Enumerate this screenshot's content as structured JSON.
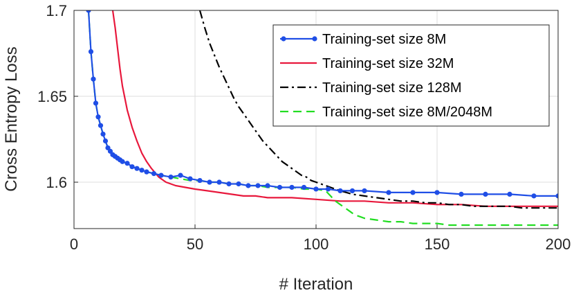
{
  "chart_data": {
    "type": "line",
    "title": "",
    "xlabel": "# Iteration",
    "ylabel": "Cross Entropy Loss",
    "xlim": [
      0,
      200
    ],
    "ylim": [
      1.573,
      1.7
    ],
    "xticks": [
      0,
      50,
      100,
      150,
      200
    ],
    "yticks": [
      1.6,
      1.65,
      1.7
    ],
    "xtick_labels": [
      "0",
      "50",
      "100",
      "150",
      "200"
    ],
    "ytick_labels": [
      "1.6",
      "1.65",
      "1.7"
    ],
    "grid": true,
    "legend_position": "top-right",
    "series": [
      {
        "name": "Training-set size 8M",
        "color": "#1f4ee6",
        "style": "solid-markers",
        "x": [
          6,
          7,
          8,
          9,
          10,
          11,
          12,
          13,
          14,
          15,
          16,
          17,
          18,
          19,
          20,
          22,
          24,
          26,
          28,
          30,
          33,
          36,
          40,
          44,
          48,
          52,
          56,
          60,
          64,
          68,
          72,
          76,
          80,
          85,
          90,
          95,
          100,
          105,
          110,
          115,
          120,
          130,
          140,
          150,
          160,
          170,
          180,
          190,
          200
        ],
        "y": [
          1.7,
          1.676,
          1.66,
          1.646,
          1.638,
          1.633,
          1.628,
          1.624,
          1.62,
          1.618,
          1.616,
          1.615,
          1.614,
          1.613,
          1.612,
          1.611,
          1.609,
          1.608,
          1.607,
          1.606,
          1.605,
          1.604,
          1.603,
          1.604,
          1.602,
          1.601,
          1.6,
          1.6,
          1.599,
          1.599,
          1.598,
          1.598,
          1.598,
          1.597,
          1.597,
          1.597,
          1.596,
          1.596,
          1.595,
          1.595,
          1.595,
          1.594,
          1.594,
          1.594,
          1.593,
          1.593,
          1.593,
          1.592,
          1.592
        ]
      },
      {
        "name": "Training-set size 32M",
        "color": "#e8183c",
        "style": "solid",
        "x": [
          16,
          17,
          18,
          19,
          20,
          22,
          24,
          26,
          28,
          30,
          32,
          35,
          38,
          42,
          46,
          50,
          55,
          60,
          65,
          70,
          75,
          80,
          90,
          100,
          110,
          120,
          130,
          140,
          150,
          160,
          170,
          180,
          190,
          200
        ],
        "y": [
          1.7,
          1.69,
          1.678,
          1.666,
          1.656,
          1.642,
          1.632,
          1.624,
          1.617,
          1.612,
          1.608,
          1.603,
          1.6,
          1.598,
          1.597,
          1.596,
          1.595,
          1.594,
          1.593,
          1.592,
          1.592,
          1.591,
          1.591,
          1.59,
          1.589,
          1.589,
          1.588,
          1.588,
          1.587,
          1.587,
          1.586,
          1.586,
          1.586,
          1.586
        ]
      },
      {
        "name": "Training-set size 128M",
        "color": "#000000",
        "style": "dash-dot",
        "x": [
          52,
          54,
          56,
          58,
          60,
          62,
          64,
          66,
          68,
          70,
          72,
          74,
          76,
          78,
          80,
          82,
          84,
          86,
          88,
          90,
          92,
          94,
          96,
          98,
          100,
          102,
          104,
          106,
          108,
          110,
          115,
          120,
          125,
          130,
          135,
          140,
          145,
          150,
          155,
          160,
          165,
          170,
          175,
          180,
          185,
          190,
          195,
          200
        ],
        "y": [
          1.7,
          1.69,
          1.681,
          1.674,
          1.667,
          1.661,
          1.655,
          1.649,
          1.644,
          1.64,
          1.636,
          1.632,
          1.628,
          1.624,
          1.621,
          1.618,
          1.615,
          1.612,
          1.61,
          1.608,
          1.606,
          1.604,
          1.603,
          1.601,
          1.6,
          1.599,
          1.598,
          1.597,
          1.596,
          1.595,
          1.593,
          1.592,
          1.591,
          1.59,
          1.589,
          1.589,
          1.588,
          1.588,
          1.587,
          1.587,
          1.586,
          1.586,
          1.586,
          1.586,
          1.585,
          1.585,
          1.585,
          1.585
        ]
      },
      {
        "name": "Training-set size 8M/2048M",
        "color": "#22dd22",
        "style": "dashed",
        "x": [
          6,
          7,
          8,
          9,
          10,
          11,
          12,
          13,
          14,
          15,
          16,
          17,
          18,
          19,
          20,
          22,
          24,
          26,
          28,
          30,
          33,
          36,
          40,
          44,
          48,
          52,
          56,
          60,
          64,
          68,
          72,
          76,
          80,
          85,
          90,
          95,
          100,
          104,
          106,
          108,
          110,
          112,
          114,
          116,
          118,
          120,
          125,
          130,
          135,
          140,
          145,
          150,
          155,
          160,
          165,
          170,
          175,
          180,
          185,
          190,
          195,
          200
        ],
        "y": [
          1.7,
          1.676,
          1.66,
          1.646,
          1.638,
          1.633,
          1.628,
          1.624,
          1.62,
          1.618,
          1.616,
          1.615,
          1.614,
          1.613,
          1.612,
          1.611,
          1.609,
          1.608,
          1.607,
          1.606,
          1.605,
          1.604,
          1.603,
          1.602,
          1.601,
          1.601,
          1.6,
          1.6,
          1.599,
          1.599,
          1.598,
          1.598,
          1.597,
          1.597,
          1.597,
          1.596,
          1.596,
          1.595,
          1.592,
          1.589,
          1.587,
          1.585,
          1.583,
          1.581,
          1.58,
          1.579,
          1.578,
          1.577,
          1.577,
          1.576,
          1.576,
          1.576,
          1.575,
          1.575,
          1.575,
          1.575,
          1.575,
          1.575,
          1.575,
          1.575,
          1.575,
          1.575
        ]
      }
    ]
  }
}
